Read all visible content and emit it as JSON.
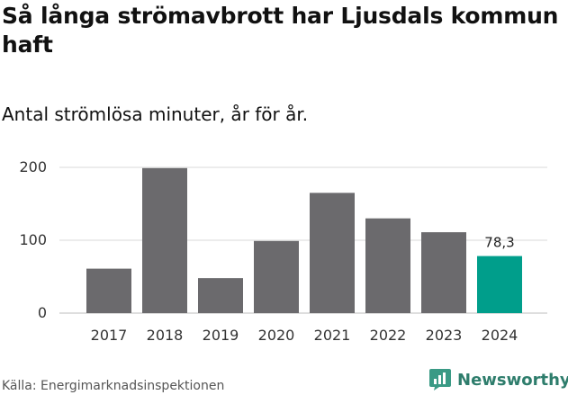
{
  "header": {
    "title": "Så långa strömavbrott har Ljusdals kommun haft",
    "subtitle": "Antal strömlösa minuter, år för år."
  },
  "footer": {
    "source": "Källa: Energimarknadsinspektionen",
    "brand": "Newsworthy"
  },
  "colors": {
    "bar": "#6b6a6d",
    "highlight": "#009e8b",
    "grid": "#d9d9d9",
    "brand": "#2e7d6c"
  },
  "icons": {
    "brand_logo": "bar-chart-logo-icon"
  },
  "chart_data": {
    "type": "bar",
    "title": "Så långa strömavbrott har Ljusdals kommun haft",
    "subtitle": "Antal strömlösa minuter, år för år.",
    "xlabel": "",
    "ylabel": "",
    "categories": [
      "2017",
      "2018",
      "2019",
      "2020",
      "2021",
      "2022",
      "2023",
      "2024"
    ],
    "values": [
      61,
      199,
      48,
      99,
      165,
      130,
      111,
      78.3
    ],
    "highlight_index": 7,
    "data_labels": [
      {
        "index": 7,
        "text": "78,3"
      }
    ],
    "ylim": [
      0,
      200
    ],
    "yticks": [
      {
        "value": 0,
        "label": "0"
      },
      {
        "value": 100,
        "label": "100"
      },
      {
        "value": 200,
        "label": "200"
      }
    ],
    "grid": true,
    "legend": "none"
  }
}
